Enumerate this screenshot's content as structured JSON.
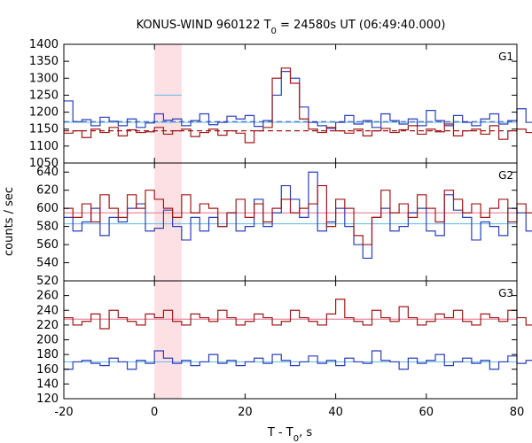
{
  "chart_data": {
    "type": "line",
    "title_main": "KONUS-WIND 960122 T",
    "title_sub": "0",
    "title_rest": " = 24580s UT (06:49:40.000)",
    "xlabel_main": "T - T",
    "xlabel_sub": "0",
    "xlabel_rest": ", s",
    "ylabel": "counts / sec",
    "xlim": [
      -20,
      80
    ],
    "x_ticks": [
      "-20",
      "0",
      "20",
      "40",
      "60",
      "80"
    ],
    "x_tick_values": [
      -20,
      0,
      20,
      40,
      60,
      80
    ],
    "highlight": {
      "x_from": 0,
      "x_to": 6,
      "color": "#fde0e3"
    },
    "bin_width": 2,
    "x_start": -20,
    "panels": [
      {
        "name": "G1",
        "ylim": [
          1050,
          1400
        ],
        "y_ticks": [
          "1050",
          "1100",
          "1150",
          "1200",
          "1250",
          "1300",
          "1350",
          "1400"
        ],
        "y_tick_values": [
          1050,
          1100,
          1150,
          1200,
          1250,
          1300,
          1350,
          1400
        ],
        "series": [
          {
            "color": "#2b3fb8",
            "values": [
              1233,
              1172,
              1178,
              1160,
              1185,
              1173,
              1160,
              1180,
              1155,
              1168,
              1195,
              1176,
              1180,
              1160,
              1175,
              1195,
              1163,
              1170,
              1188,
              1180,
              1190,
              1158,
              1175,
              1250,
              1320,
              1300,
              1215,
              1170,
              1160,
              1152,
              1170,
              1190,
              1165,
              1175,
              1155,
              1195,
              1175,
              1165,
              1180,
              1160,
              1205,
              1175,
              1160,
              1190,
              1170,
              1160,
              1180,
              1195,
              1165,
              1175,
              1210,
              1170,
              1150,
              1165,
              1190,
              1170,
              1180,
              1160,
              1175,
              1160,
              1160,
              1190,
              1170,
              1215,
              1180,
              1165,
              1175,
              1160,
              1155,
              1190,
              1170,
              1180,
              1165,
              1185,
              1170,
              1175,
              1160,
              1190,
              1170,
              1180,
              1200,
              1170,
              1165,
              1180,
              1160,
              1175,
              1185,
              1160,
              1170,
              1190,
              1170,
              1160,
              1180,
              1155,
              1175,
              1165,
              1190,
              1170,
              1150,
              1220
            ]
          },
          {
            "color": "#a01818",
            "values": [
              1138,
              1145,
              1125,
              1150,
              1140,
              1155,
              1130,
              1148,
              1140,
              1142,
              1155,
              1135,
              1145,
              1150,
              1128,
              1140,
              1150,
              1132,
              1145,
              1138,
              1110,
              1145,
              1155,
              1300,
              1330,
              1285,
              1180,
              1150,
              1140,
              1155,
              1145,
              1138,
              1150,
              1130,
              1145,
              1152,
              1140,
              1148,
              1160,
              1135,
              1150,
              1142,
              1165,
              1130,
              1145,
              1150,
              1135,
              1160,
              1120,
              1145,
              1150,
              1140,
              1130,
              1148,
              1155,
              1145,
              1138,
              1150,
              1142,
              1135,
              1155,
              1140,
              1110,
              1148,
              1150,
              1135,
              1145,
              1152,
              1130,
              1140,
              1150,
              1145,
              1155,
              1135,
              1148,
              1140,
              1150,
              1160,
              1132,
              1145,
              1138,
              1100,
              1150,
              1142,
              1145,
              1135,
              1150,
              1140,
              1148,
              1130,
              1155,
              1145,
              1138,
              1150,
              1142,
              1132,
              1155,
              1145,
              1140,
              1150
            ]
          }
        ],
        "ref_lines": [
          {
            "y": 1172,
            "color": "#2b3fb8",
            "style": "dashed",
            "x_from": -20,
            "x_to": 80
          },
          {
            "y": 1145,
            "color": "#a01818",
            "style": "dashed",
            "x_from": -20,
            "x_to": 80
          },
          {
            "y": 1250,
            "color": "#6fc0e8",
            "style": "solid",
            "x_from": 0,
            "x_to": 6
          },
          {
            "y": 1170,
            "color": "#6fc0e8",
            "style": "solid",
            "x_from": -20,
            "x_to": 80
          }
        ]
      },
      {
        "name": "G2",
        "ylim": [
          520,
          650
        ],
        "y_ticks": [
          "520",
          "540",
          "560",
          "580",
          "600",
          "620",
          "640"
        ],
        "y_tick_values": [
          520,
          540,
          560,
          580,
          600,
          620,
          640
        ],
        "series": [
          {
            "color": "#2b3fb8",
            "values": [
              590,
              575,
              585,
              600,
              570,
              590,
              585,
              600,
              605,
              575,
              578,
              598,
              580,
              565,
              590,
              575,
              590,
              580,
              595,
              575,
              580,
              610,
              580,
              595,
              625,
              610,
              590,
              640,
              575,
              585,
              600,
              580,
              560,
              545,
              590,
              600,
              575,
              580,
              595,
              600,
              575,
              570,
              615,
              598,
              590,
              565,
              585,
              580,
              570,
              600,
              595,
              575,
              585,
              600,
              610,
              575,
              560,
              590,
              580,
              585,
              625,
              600,
              615,
              565,
              590,
              570,
              600,
              580,
              575,
              595,
              615,
              580,
              560,
              590,
              575,
              585,
              600,
              565,
              590,
              580,
              575,
              600,
              585,
              560,
              590,
              575,
              600,
              610,
              580,
              565,
              595,
              585,
              570,
              600,
              590,
              580,
              575,
              600,
              585,
              590
            ]
          },
          {
            "color": "#a01818",
            "values": [
              600,
              590,
              605,
              585,
              615,
              600,
              590,
              615,
              600,
              620,
              610,
              600,
              590,
              615,
              595,
              605,
              600,
              580,
              595,
              610,
              590,
              605,
              585,
              600,
              610,
              595,
              600,
              605,
              625,
              580,
              610,
              600,
              570,
              560,
              590,
              620,
              595,
              605,
              590,
              615,
              600,
              585,
              620,
              610,
              595,
              605,
              590,
              600,
              610,
              585,
              605,
              595,
              600,
              615,
              590,
              600,
              580,
              605,
              615,
              595,
              600,
              585,
              590,
              610,
              600,
              580,
              615,
              595,
              605,
              600,
              590,
              610,
              600,
              620,
              595,
              605,
              600,
              590,
              610,
              595,
              600,
              615,
              590,
              605,
              600,
              585,
              610,
              600,
              595,
              615,
              590,
              605,
              600,
              610,
              595,
              600,
              620,
              590,
              605,
              600
            ]
          }
        ],
        "ref_lines": [
          {
            "y": 595,
            "color": "#e88aa0",
            "style": "solid",
            "x_from": -20,
            "x_to": 80
          },
          {
            "y": 583,
            "color": "#6fc0e8",
            "style": "solid",
            "x_from": -20,
            "x_to": 80
          }
        ]
      },
      {
        "name": "G3",
        "ylim": [
          120,
          280
        ],
        "y_ticks": [
          "120",
          "140",
          "160",
          "180",
          "200",
          "220",
          "240",
          "260"
        ],
        "y_tick_values": [
          120,
          140,
          160,
          180,
          200,
          220,
          240,
          260
        ],
        "series": [
          {
            "color": "#2b3fb8",
            "values": [
              160,
              170,
              172,
              168,
              165,
              175,
              170,
              160,
              172,
              168,
              185,
              175,
              168,
              172,
              165,
              170,
              180,
              168,
              172,
              165,
              170,
              175,
              168,
              180,
              172,
              165,
              170,
              178,
              168,
              172,
              165,
              175,
              170,
              168,
              185,
              172,
              170,
              160,
              175,
              168,
              172,
              180,
              165,
              170,
              175,
              168,
              172,
              160,
              170,
              178,
              168,
              172,
              165,
              175,
              170,
              168,
              185,
              172,
              170,
              160,
              175,
              168,
              172,
              180,
              165,
              170,
              175,
              168,
              172,
              160,
              170,
              178,
              168,
              172,
              165,
              175,
              170,
              168,
              185,
              172,
              170,
              160,
              175,
              168,
              172,
              180,
              165,
              170,
              175,
              168,
              172,
              160,
              170,
              178,
              168,
              172,
              165,
              175,
              170,
              168
            ]
          },
          {
            "color": "#a01818",
            "values": [
              230,
              220,
              225,
              235,
              215,
              240,
              230,
              225,
              220,
              235,
              230,
              240,
              225,
              220,
              235,
              230,
              225,
              240,
              230,
              220,
              225,
              235,
              230,
              220,
              225,
              240,
              230,
              225,
              220,
              235,
              255,
              230,
              225,
              220,
              240,
              230,
              225,
              245,
              230,
              220,
              225,
              235,
              230,
              240,
              225,
              220,
              235,
              230,
              225,
              240,
              230,
              220,
              225,
              235,
              230,
              220,
              225,
              240,
              230,
              225,
              220,
              235,
              255,
              230,
              225,
              220,
              240,
              230,
              225,
              245,
              230,
              220,
              225,
              235,
              230,
              240,
              225,
              220,
              235,
              230,
              225,
              240,
              230,
              220,
              225,
              235,
              230,
              220,
              225,
              240,
              230,
              225,
              220,
              235,
              255,
              230,
              225,
              220,
              240,
              230
            ]
          }
        ],
        "ref_lines": [
          {
            "y": 228,
            "color": "#e88aa0",
            "style": "solid",
            "x_from": -20,
            "x_to": 80
          },
          {
            "y": 170,
            "color": "#6fc0e8",
            "style": "solid",
            "x_from": -20,
            "x_to": 80
          }
        ]
      }
    ]
  }
}
